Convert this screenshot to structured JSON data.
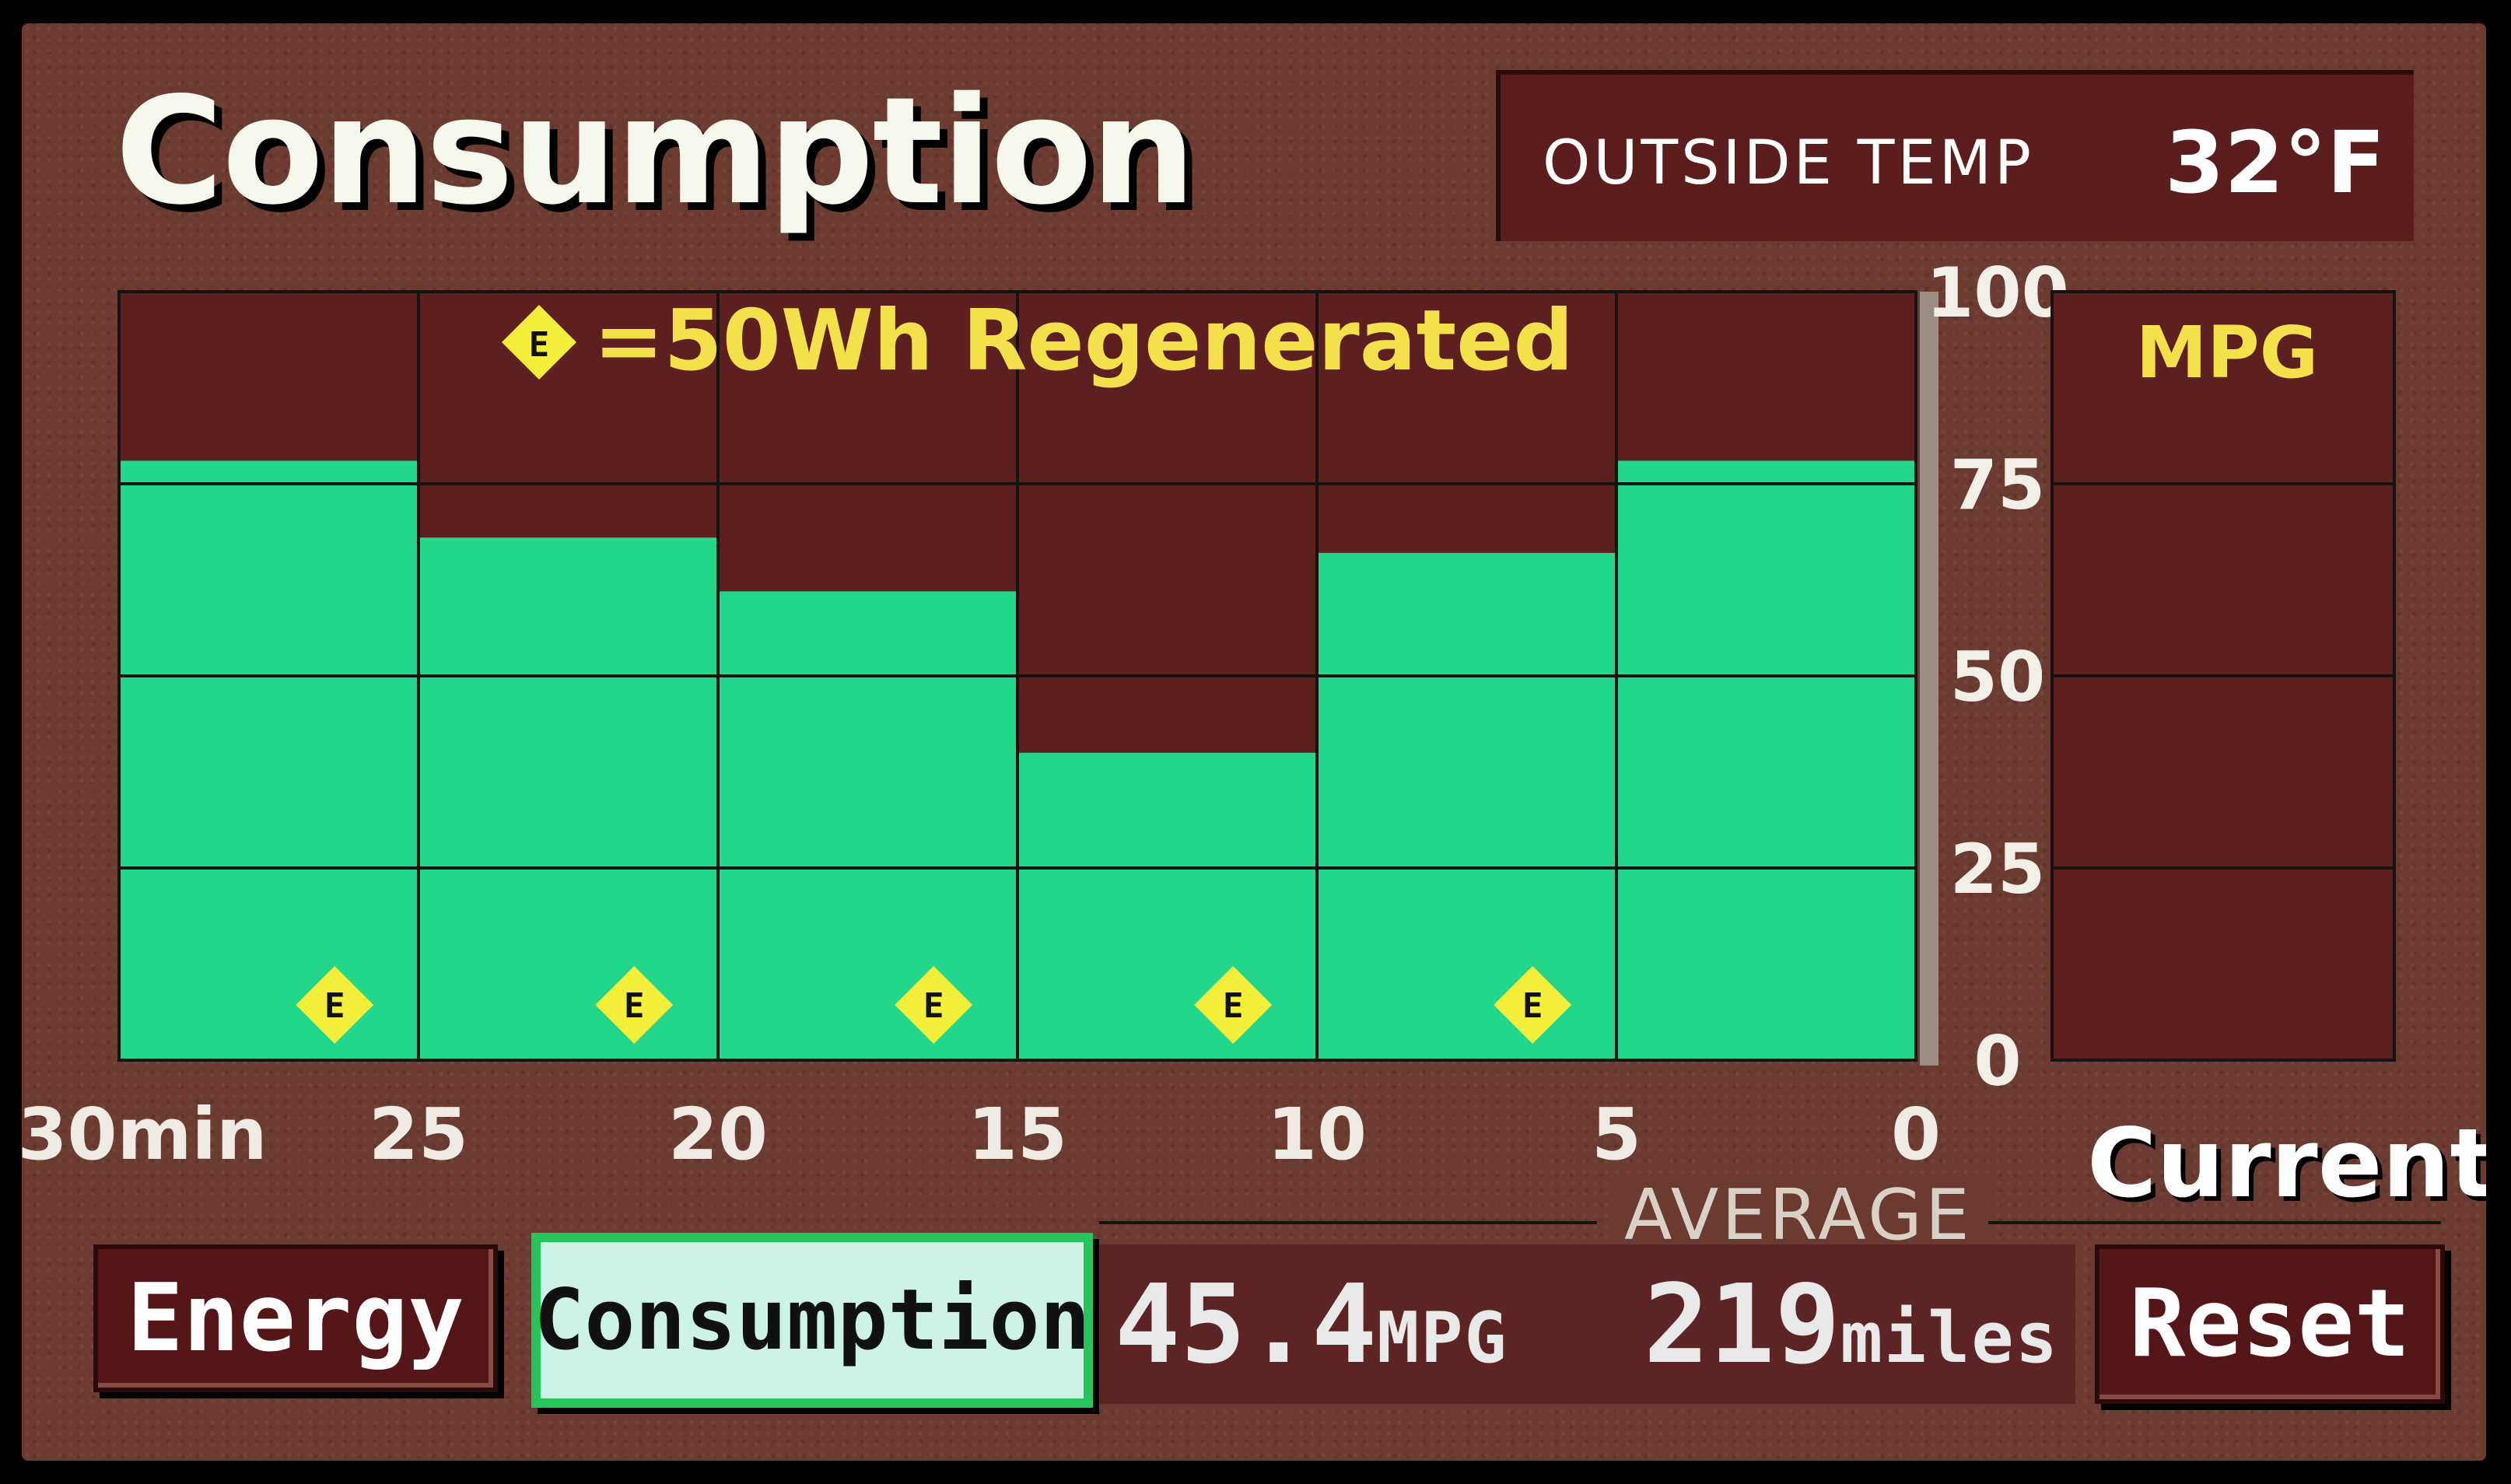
{
  "header": {
    "title": "Consumption",
    "outside_temp_label": "OUTSIDE TEMP",
    "outside_temp_value": "32°F"
  },
  "chart_data": {
    "type": "bar",
    "legend_text": "=50Wh Regenerated",
    "legend_icon": "E",
    "x_tick_labels": [
      "30min",
      "25",
      "20",
      "15",
      "10",
      "5",
      "0"
    ],
    "y_tick_labels": [
      "100",
      "75",
      "50",
      "25",
      "0"
    ],
    "ylim": [
      0,
      100
    ],
    "categories": [
      "30-25",
      "25-20",
      "20-15",
      "15-10",
      "10-5",
      "5-0"
    ],
    "values": [
      78,
      68,
      61,
      40,
      66,
      78
    ],
    "regen_markers": [
      1,
      1,
      1,
      1,
      1,
      0
    ],
    "current_label": "MPG",
    "current_value": 0,
    "colors": {
      "bar": "#22d68c",
      "background": "#5d1f1f",
      "marker": "#f4ef3a"
    }
  },
  "current_label": "Current",
  "average": {
    "label": "AVERAGE",
    "mpg_value": "45.4",
    "mpg_unit": "MPG",
    "miles_value": "219",
    "miles_unit": "miles"
  },
  "buttons": {
    "energy": "Energy",
    "consumption": "Consumption",
    "reset": "Reset"
  }
}
